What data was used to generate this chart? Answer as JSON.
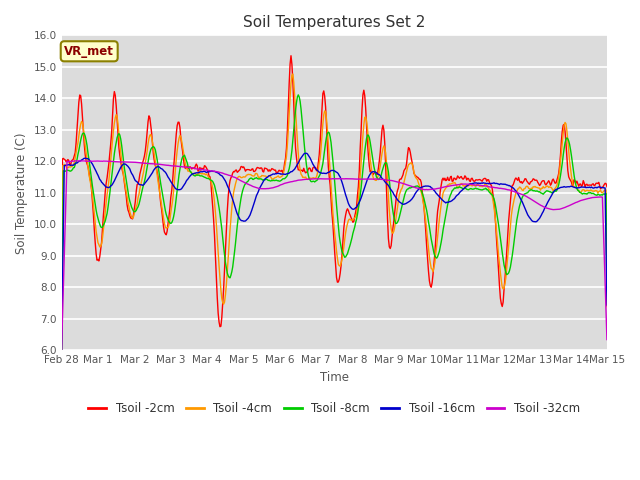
{
  "title": "Soil Temperatures Set 2",
  "xlabel": "Time",
  "ylabel": "Soil Temperature (C)",
  "ylim": [
    6.0,
    16.0
  ],
  "yticks": [
    6.0,
    7.0,
    8.0,
    9.0,
    10.0,
    11.0,
    12.0,
    13.0,
    14.0,
    15.0,
    16.0
  ],
  "colors": {
    "Tsoil -2cm": "#ff0000",
    "Tsoil -4cm": "#ff9900",
    "Tsoil -8cm": "#00cc00",
    "Tsoil -16cm": "#0000cc",
    "Tsoil -32cm": "#cc00cc"
  },
  "legend_label": "VR_met",
  "background_color": "#dcdcdc",
  "xtick_labels": [
    "Feb 28",
    "Mar 1",
    "Mar 2",
    "Mar 3",
    "Mar 4",
    "Mar 5",
    "Mar 6",
    "Mar 7",
    "Mar 8",
    "Mar 9",
    "Mar 10",
    "Mar 11",
    "Mar 12",
    "Mar 13",
    "Mar 14",
    "Mar 15"
  ],
  "n_points": 600
}
